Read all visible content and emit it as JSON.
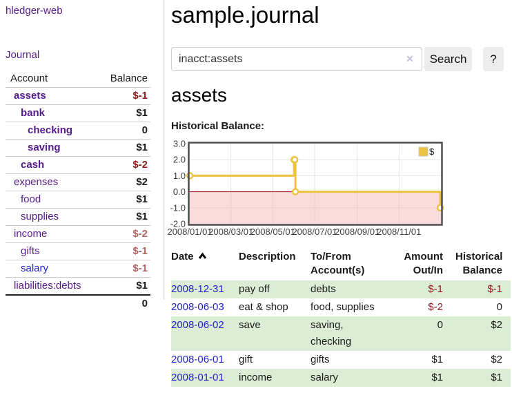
{
  "sidebar": {
    "app_title": "hledger-web",
    "nav": {
      "journal_label": "Journal"
    },
    "accounts_table": {
      "headers": {
        "account": "Account",
        "balance": "Balance"
      },
      "accounts": [
        {
          "name": "assets",
          "depth": 1,
          "bold": true,
          "name_color": "#551a8b",
          "balance": "$-1",
          "balance_color": "#8b1a1a"
        },
        {
          "name": "bank",
          "depth": 2,
          "bold": true,
          "name_color": "#551a8b",
          "balance": "$1",
          "balance_color": "#1a1a1a"
        },
        {
          "name": "checking",
          "depth": 3,
          "bold": true,
          "name_color": "#551a8b",
          "balance": "0",
          "balance_color": "#1a1a1a"
        },
        {
          "name": "saving",
          "depth": 3,
          "bold": true,
          "name_color": "#551a8b",
          "balance": "$1",
          "balance_color": "#1a1a1a"
        },
        {
          "name": "cash",
          "depth": 2,
          "bold": true,
          "name_color": "#551a8b",
          "balance": "$-2",
          "balance_color": "#8b1a1a"
        },
        {
          "name": "expenses",
          "depth": 1,
          "bold": false,
          "name_color": "#551a8b",
          "balance": "$2",
          "balance_color": "#1a1a1a"
        },
        {
          "name": "food",
          "depth": 2,
          "bold": false,
          "name_color": "#551a8b",
          "balance": "$1",
          "balance_color": "#1a1a1a"
        },
        {
          "name": "supplies",
          "depth": 2,
          "bold": false,
          "name_color": "#551a8b",
          "balance": "$1",
          "balance_color": "#1a1a1a"
        },
        {
          "name": "income",
          "depth": 1,
          "bold": false,
          "name_color": "#551a8b",
          "balance": "$-2",
          "balance_color": "#b46262"
        },
        {
          "name": "gifts",
          "depth": 2,
          "bold": false,
          "name_color": "#551a8b",
          "balance": "$-1",
          "balance_color": "#b46262"
        },
        {
          "name": "salary",
          "depth": 2,
          "bold": false,
          "name_color": "#2222cc",
          "balance": "$-1",
          "balance_color": "#b46262"
        },
        {
          "name": "liabilities:debts",
          "depth": 1,
          "bold": false,
          "name_color": "#551a8b",
          "balance": "$1",
          "balance_color": "#1a1a1a"
        }
      ],
      "total": "0"
    }
  },
  "main": {
    "title": "sample.journal",
    "search": {
      "value": "inacct:assets",
      "clear_icon": "✕",
      "button_label": "Search",
      "help_label": "?"
    },
    "account_heading": "assets",
    "section_label": "Historical Balance:",
    "register": {
      "headers": {
        "date": "Date",
        "description": "Description",
        "account": "To/From\nAccount(s)",
        "amount": "Amount\nOut/In",
        "balance": "Historical\nBalance"
      },
      "rows": [
        {
          "date": "2008-12-31",
          "description": "pay off",
          "accounts": "debts",
          "amount": "$-1",
          "amount_color": "#8b1a1a",
          "balance": "$-1",
          "balance_color": "#8b1a1a"
        },
        {
          "date": "2008-06-03",
          "description": "eat & shop",
          "accounts": "food, supplies",
          "amount": "$-2",
          "amount_color": "#8b1a1a",
          "balance": "0",
          "balance_color": "#1a1a1a"
        },
        {
          "date": "2008-06-02",
          "description": "save",
          "accounts": "saving,\nchecking",
          "amount": "0",
          "amount_color": "#1a1a1a",
          "balance": "$2",
          "balance_color": "#1a1a1a"
        },
        {
          "date": "2008-06-01",
          "description": "gift",
          "accounts": "gifts",
          "amount": "$1",
          "amount_color": "#1a1a1a",
          "balance": "$2",
          "balance_color": "#1a1a1a"
        },
        {
          "date": "2008-01-01",
          "description": "income",
          "accounts": "salary",
          "amount": "$1",
          "amount_color": "#1a1a1a",
          "balance": "$1",
          "balance_color": "#1a1a1a"
        }
      ]
    }
  },
  "chart_data": {
    "type": "line",
    "title": "Historical Balance",
    "step": true,
    "series": [
      {
        "name": "$",
        "color": "#edc240",
        "points": [
          [
            "2008-01-01",
            1
          ],
          [
            "2008-06-01",
            2
          ],
          [
            "2008-06-02",
            2
          ],
          [
            "2008-06-03",
            0
          ],
          [
            "2008-12-31",
            -1
          ]
        ]
      }
    ],
    "x_range": [
      "2008-01-01",
      "2009-01-01"
    ],
    "x_ticks": [
      {
        "date": "2008-01-01",
        "label": "2008/01/01"
      },
      {
        "date": "2008-03-01",
        "label": "2008/03/01"
      },
      {
        "date": "2008-05-01",
        "label": "2008/05/01"
      },
      {
        "date": "2008-07-01",
        "label": "2008/07/01"
      },
      {
        "date": "2008-09-01",
        "label": "2008/09/01"
      },
      {
        "date": "2008-11-01",
        "label": "2008/11/01"
      }
    ],
    "y_ticks": [
      3.0,
      2.0,
      1.0,
      0.0,
      -1.0,
      -2.0
    ],
    "ylim": [
      -2,
      3
    ],
    "grid": true,
    "legend": {
      "position": "top-right",
      "label": "$"
    },
    "negative_region_color": "#f5baba",
    "zero_line_color": "#8e0d0d"
  },
  "colors": {
    "accent_purple": "#551a8b",
    "link_blue": "#2222cc",
    "negative_red": "#8b1a1a",
    "negative_soft_red": "#b46262",
    "row_green": "#dcedd5",
    "chart_yellow": "#edc240"
  }
}
